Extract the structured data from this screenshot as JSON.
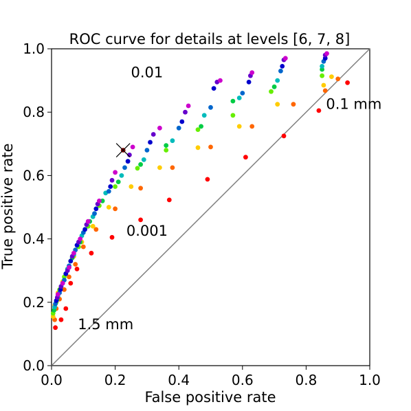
{
  "chart_data": {
    "type": "scatter",
    "title": "ROC curve for details at levels [6, 7, 8]",
    "xlabel": "False positive rate",
    "ylabel": "True positive rate",
    "xlim": [
      0.0,
      1.0
    ],
    "ylim": [
      0.0,
      1.0
    ],
    "x_ticks": [
      "0.0",
      "0.2",
      "0.4",
      "0.6",
      "0.8",
      "1.0"
    ],
    "y_ticks": [
      "0.0",
      "0.2",
      "0.4",
      "0.6",
      "0.8",
      "1.0"
    ],
    "grid": false,
    "diagonal_reference_line": {
      "from": [
        0,
        0
      ],
      "to": [
        1,
        1
      ],
      "color": "#808080"
    },
    "color_scale": "hue gradient (red → orange → yellow → green → cyan → blue → violet → magenta), darker shades for larger detail sizes",
    "annotations": [
      {
        "text": "0.01",
        "x": 0.3,
        "y": 0.91
      },
      {
        "text": "0.001",
        "x": 0.3,
        "y": 0.41
      },
      {
        "text": "0.1 mm",
        "x": 0.95,
        "y": 0.81
      },
      {
        "text": "1.5 mm",
        "x": 0.17,
        "y": 0.115
      }
    ],
    "marker": {
      "symbol": "x",
      "x": 0.225,
      "y": 0.68
    },
    "series": [
      {
        "color": "#ff0000",
        "points": [
          [
            0.012,
            0.12
          ],
          [
            0.03,
            0.145
          ],
          [
            0.045,
            0.18
          ],
          [
            0.06,
            0.26
          ],
          [
            0.08,
            0.305
          ],
          [
            0.125,
            0.355
          ],
          [
            0.19,
            0.405
          ],
          [
            0.28,
            0.46
          ],
          [
            0.37,
            0.523
          ],
          [
            0.49,
            0.588
          ],
          [
            0.61,
            0.658
          ],
          [
            0.73,
            0.725
          ],
          [
            0.84,
            0.805
          ],
          [
            0.93,
            0.893
          ]
        ]
      },
      {
        "color": "#ff6600",
        "points": [
          [
            0.01,
            0.145
          ],
          [
            0.015,
            0.18
          ],
          [
            0.025,
            0.21
          ],
          [
            0.04,
            0.24
          ],
          [
            0.055,
            0.28
          ],
          [
            0.075,
            0.32
          ],
          [
            0.1,
            0.375
          ],
          [
            0.14,
            0.43
          ],
          [
            0.2,
            0.495
          ],
          [
            0.28,
            0.56
          ],
          [
            0.38,
            0.625
          ],
          [
            0.5,
            0.69
          ],
          [
            0.63,
            0.755
          ],
          [
            0.76,
            0.825
          ],
          [
            0.86,
            0.868
          ],
          [
            0.9,
            0.905
          ]
        ]
      },
      {
        "color": "#ffcc00",
        "points": [
          [
            0.005,
            0.155
          ],
          [
            0.01,
            0.19
          ],
          [
            0.02,
            0.23
          ],
          [
            0.035,
            0.265
          ],
          [
            0.05,
            0.305
          ],
          [
            0.07,
            0.345
          ],
          [
            0.095,
            0.39
          ],
          [
            0.13,
            0.44
          ],
          [
            0.18,
            0.5
          ],
          [
            0.25,
            0.565
          ],
          [
            0.34,
            0.625
          ],
          [
            0.46,
            0.688
          ],
          [
            0.59,
            0.755
          ],
          [
            0.71,
            0.825
          ],
          [
            0.855,
            0.885
          ],
          [
            0.88,
            0.912
          ]
        ]
      },
      {
        "color": "#66ee00",
        "points": [
          [
            0.005,
            0.165
          ],
          [
            0.015,
            0.2
          ],
          [
            0.025,
            0.24
          ],
          [
            0.04,
            0.28
          ],
          [
            0.06,
            0.33
          ],
          [
            0.085,
            0.375
          ],
          [
            0.115,
            0.44
          ],
          [
            0.15,
            0.505
          ],
          [
            0.2,
            0.565
          ],
          [
            0.27,
            0.623
          ],
          [
            0.36,
            0.68
          ],
          [
            0.46,
            0.745
          ],
          [
            0.57,
            0.79
          ],
          [
            0.69,
            0.865
          ],
          [
            0.85,
            0.915
          ]
        ]
      },
      {
        "color": "#00cc44",
        "points": [
          [
            0.008,
            0.175
          ],
          [
            0.018,
            0.21
          ],
          [
            0.03,
            0.25
          ],
          [
            0.045,
            0.29
          ],
          [
            0.065,
            0.34
          ],
          [
            0.09,
            0.39
          ],
          [
            0.12,
            0.455
          ],
          [
            0.16,
            0.52
          ],
          [
            0.21,
            0.58
          ],
          [
            0.28,
            0.635
          ],
          [
            0.36,
            0.695
          ],
          [
            0.47,
            0.755
          ],
          [
            0.57,
            0.835
          ],
          [
            0.7,
            0.88
          ],
          [
            0.85,
            0.935
          ]
        ]
      },
      {
        "color": "#00bbbb",
        "points": [
          [
            0.01,
            0.185
          ],
          [
            0.02,
            0.22
          ],
          [
            0.035,
            0.26
          ],
          [
            0.05,
            0.305
          ],
          [
            0.07,
            0.35
          ],
          [
            0.095,
            0.41
          ],
          [
            0.13,
            0.47
          ],
          [
            0.17,
            0.545
          ],
          [
            0.22,
            0.6
          ],
          [
            0.29,
            0.65
          ],
          [
            0.38,
            0.71
          ],
          [
            0.48,
            0.79
          ],
          [
            0.59,
            0.845
          ],
          [
            0.71,
            0.9
          ],
          [
            0.85,
            0.945
          ]
        ]
      },
      {
        "color": "#0066cc",
        "points": [
          [
            0.012,
            0.195
          ],
          [
            0.025,
            0.23
          ],
          [
            0.04,
            0.27
          ],
          [
            0.055,
            0.315
          ],
          [
            0.075,
            0.365
          ],
          [
            0.1,
            0.42
          ],
          [
            0.135,
            0.48
          ],
          [
            0.18,
            0.55
          ],
          [
            0.23,
            0.625
          ],
          [
            0.3,
            0.68
          ],
          [
            0.4,
            0.75
          ],
          [
            0.5,
            0.815
          ],
          [
            0.6,
            0.86
          ],
          [
            0.72,
            0.93
          ],
          [
            0.855,
            0.96
          ]
        ]
      },
      {
        "color": "#0000cc",
        "points": [
          [
            0.015,
            0.205
          ],
          [
            0.028,
            0.24
          ],
          [
            0.045,
            0.29
          ],
          [
            0.06,
            0.33
          ],
          [
            0.08,
            0.38
          ],
          [
            0.105,
            0.43
          ],
          [
            0.14,
            0.495
          ],
          [
            0.185,
            0.565
          ],
          [
            0.24,
            0.645
          ],
          [
            0.31,
            0.705
          ],
          [
            0.41,
            0.77
          ],
          [
            0.51,
            0.875
          ],
          [
            0.62,
            0.895
          ],
          [
            0.725,
            0.945
          ],
          [
            0.86,
            0.97
          ]
        ]
      },
      {
        "color": "#6600cc",
        "points": [
          [
            0.018,
            0.215
          ],
          [
            0.03,
            0.25
          ],
          [
            0.05,
            0.3
          ],
          [
            0.065,
            0.345
          ],
          [
            0.085,
            0.39
          ],
          [
            0.11,
            0.445
          ],
          [
            0.145,
            0.51
          ],
          [
            0.19,
            0.585
          ],
          [
            0.245,
            0.665
          ],
          [
            0.32,
            0.73
          ],
          [
            0.42,
            0.8
          ],
          [
            0.52,
            0.895
          ],
          [
            0.625,
            0.915
          ],
          [
            0.73,
            0.965
          ],
          [
            0.86,
            0.98
          ]
        ]
      },
      {
        "color": "#cc00cc",
        "points": [
          [
            0.02,
            0.225
          ],
          [
            0.035,
            0.26
          ],
          [
            0.055,
            0.31
          ],
          [
            0.07,
            0.355
          ],
          [
            0.09,
            0.4
          ],
          [
            0.115,
            0.455
          ],
          [
            0.15,
            0.52
          ],
          [
            0.2,
            0.61
          ],
          [
            0.255,
            0.69
          ],
          [
            0.34,
            0.75
          ],
          [
            0.43,
            0.82
          ],
          [
            0.53,
            0.9
          ],
          [
            0.63,
            0.925
          ],
          [
            0.735,
            0.97
          ],
          [
            0.865,
            0.985
          ]
        ]
      },
      {
        "color": "#8b0000",
        "points": [
          [
            0.225,
            0.68
          ]
        ]
      }
    ]
  }
}
